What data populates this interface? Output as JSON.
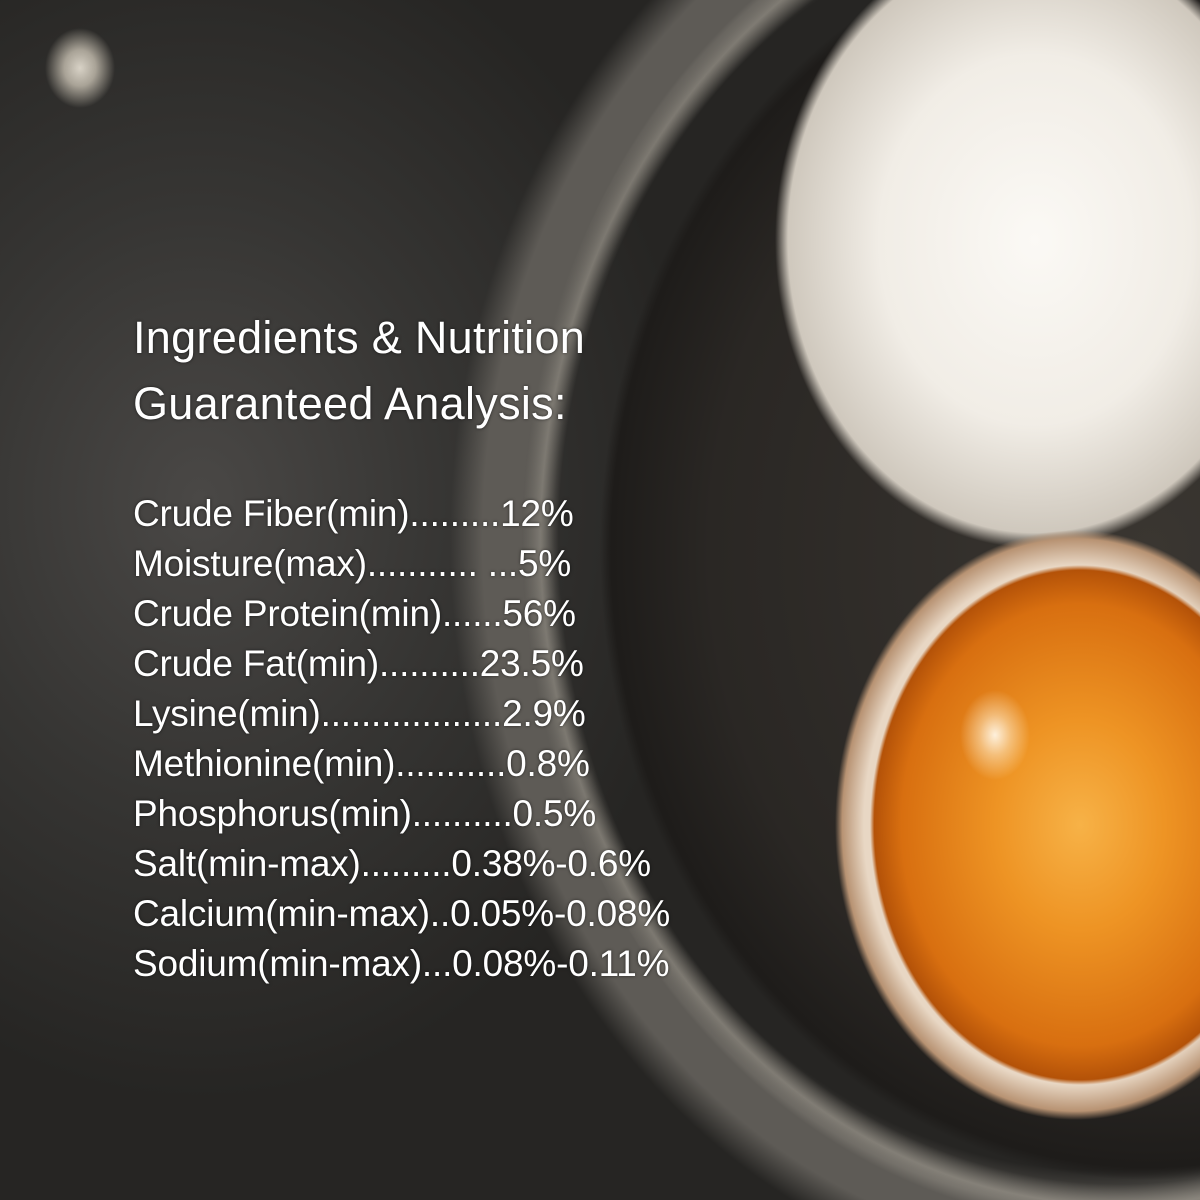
{
  "title_lines": [
    "Ingredients & Nutrition",
    "Guaranteed Analysis:"
  ],
  "analysis": [
    "Crude Fiber(min).........12%",
    "Moisture(max)........... ...5%",
    "Crude Protein(min)......56%",
    "Crude Fat(min)..........23.5%",
    "Lysine(min)..................2.9%",
    "Methionine(min)...........0.8%",
    "Phosphorus(min)..........0.5%",
    "Salt(min-max).........0.38%-0.6%",
    "Calcium(min-max)..0.05%-0.08%",
    "Sodium(min-max)...0.08%-0.11%"
  ],
  "colors": {
    "background": "#2a2927",
    "text": "#ffffff",
    "yolk": "#ee9424",
    "egg": "#f1ede6"
  }
}
